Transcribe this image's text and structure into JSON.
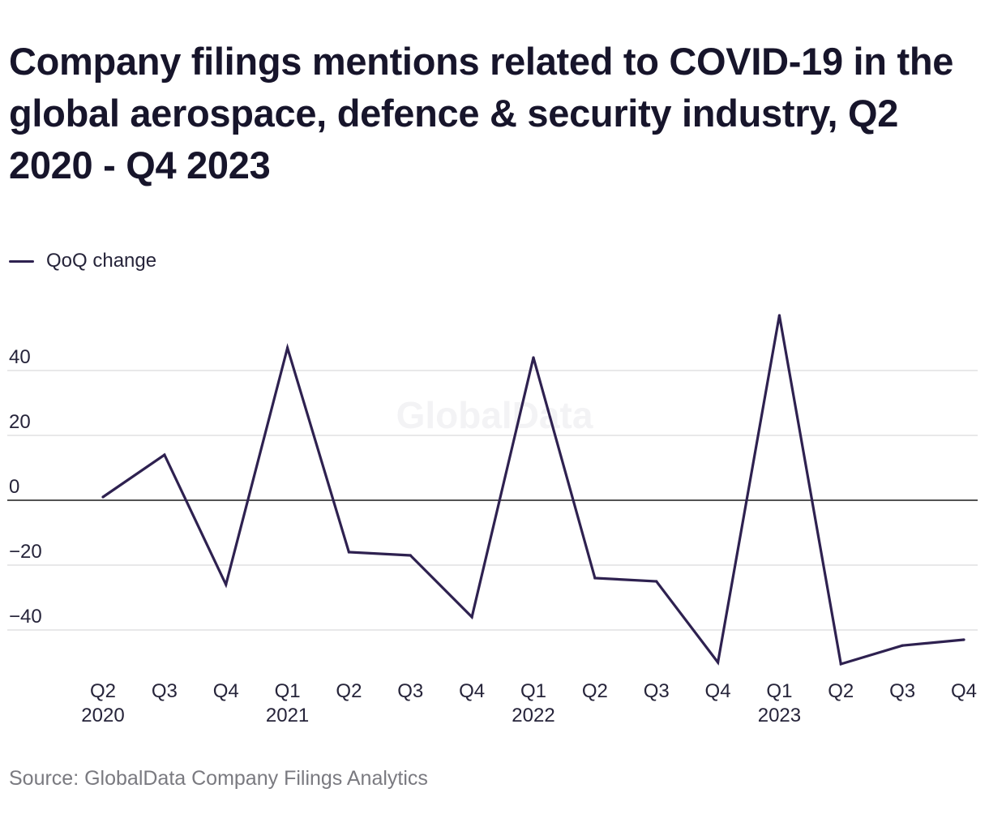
{
  "title": "Company filings mentions related to COVID-19 in the global aerospace, defence & security industry, Q2 2020 - Q4 2023",
  "legend": {
    "label": "QoQ change",
    "color": "#2e2150"
  },
  "watermark": "GlobalData",
  "source": "Source: GlobalData Company Filings Analytics",
  "colors": {
    "line": "#2e2150",
    "grid": "#d9d9dc",
    "zero_line": "#1a1a1a",
    "text": "#26243a"
  },
  "chart_data": {
    "type": "line",
    "x": [
      "Q2 2020",
      "Q3 2020",
      "Q4 2020",
      "Q1 2021",
      "Q2 2021",
      "Q3 2021",
      "Q4 2021",
      "Q1 2022",
      "Q2 2022",
      "Q3 2022",
      "Q4 2022",
      "Q1 2023",
      "Q2 2023",
      "Q3 2023",
      "Q4 2023"
    ],
    "tick_labels": [
      {
        "q": "Q2",
        "year": "2020"
      },
      {
        "q": "Q3",
        "year": ""
      },
      {
        "q": "Q4",
        "year": ""
      },
      {
        "q": "Q1",
        "year": "2021"
      },
      {
        "q": "Q2",
        "year": ""
      },
      {
        "q": "Q3",
        "year": ""
      },
      {
        "q": "Q4",
        "year": ""
      },
      {
        "q": "Q1",
        "year": "2022"
      },
      {
        "q": "Q2",
        "year": ""
      },
      {
        "q": "Q3",
        "year": ""
      },
      {
        "q": "Q4",
        "year": ""
      },
      {
        "q": "Q1",
        "year": "2023"
      },
      {
        "q": "Q2",
        "year": ""
      },
      {
        "q": "Q3",
        "year": ""
      },
      {
        "q": "Q4",
        "year": ""
      }
    ],
    "series": [
      {
        "name": "QoQ change",
        "values": [
          1,
          14,
          -26,
          47,
          -16,
          -17,
          -36,
          44,
          -24,
          -25,
          -50,
          57,
          -50.5,
          -44.8,
          -43
        ]
      }
    ],
    "yticks": [
      40,
      20,
      0,
      -20,
      -40
    ],
    "ytick_labels": [
      "40",
      "20",
      "0",
      "−20",
      "−40"
    ],
    "ylim": [
      -50.5,
      57
    ],
    "grid": true,
    "legend_position": "top-left"
  }
}
